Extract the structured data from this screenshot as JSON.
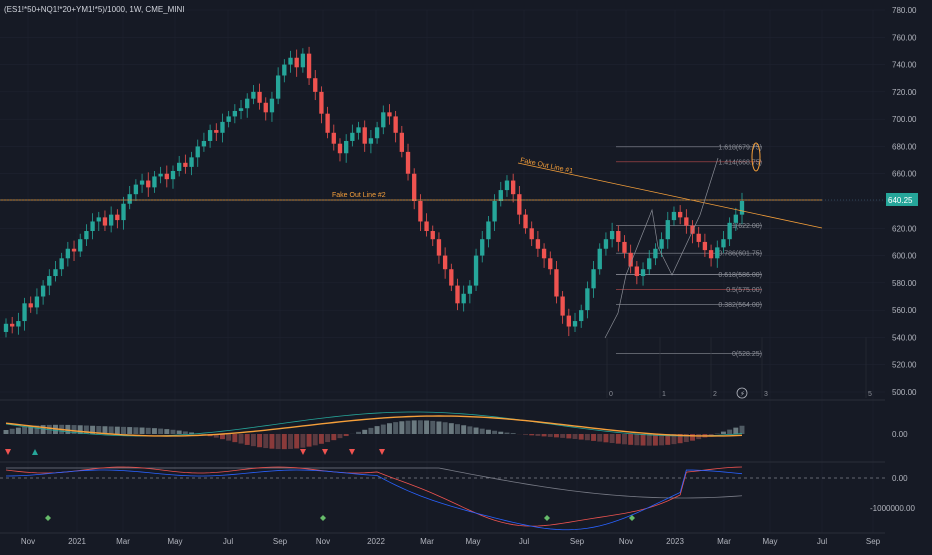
{
  "chart_title": "(ES1!*50+NQ1!*20+YM1!*5)/1000, 1W, CME_MINI",
  "price_badge": "640.25",
  "colors": {
    "up": "#26a69a",
    "down": "#ef5350",
    "orange": "#f59f3a",
    "bg": "#161a25"
  },
  "chart_data": {
    "type": "candlestick",
    "x_ticks": [
      "Nov",
      "2021",
      "Mar",
      "May",
      "Jul",
      "Sep",
      "Nov",
      "2022",
      "Mar",
      "May",
      "Jul",
      "Sep",
      "Nov",
      "2023",
      "Mar",
      "May",
      "Jul",
      "Sep"
    ],
    "y_ticks": [
      500,
      520,
      540,
      560,
      580,
      600,
      620,
      640,
      660,
      680,
      700,
      720,
      740,
      760,
      780
    ],
    "ylim": [
      492,
      788
    ],
    "series": [
      {
        "values": [
          550,
          548,
          552,
          565,
          562,
          570,
          578,
          585,
          590,
          598,
          605,
          603,
          612,
          618,
          625,
          628,
          622,
          630,
          626,
          638,
          645,
          652,
          655,
          650,
          658,
          660,
          656,
          662,
          668,
          665,
          672,
          680,
          684,
          692,
          690,
          698,
          702,
          706,
          708,
          715,
          720,
          712,
          705,
          715,
          732,
          740,
          745,
          738,
          748,
          730,
          720,
          704,
          690,
          682,
          675,
          684,
          690,
          694,
          682,
          686,
          694,
          705,
          702,
          690,
          676,
          660,
          640,
          625,
          618,
          612,
          600,
          590,
          578,
          565,
          572,
          578,
          600,
          612,
          625,
          640,
          648,
          655,
          645,
          630,
          620,
          612,
          605,
          598,
          590,
          570,
          556,
          548,
          552,
          560,
          576,
          590,
          605,
          612,
          618,
          610,
          602,
          592,
          585,
          590,
          598,
          605,
          612,
          626,
          632,
          628,
          622,
          616,
          610,
          604,
          598,
          606,
          612,
          624,
          630,
          640
        ]
      }
    ],
    "annotations": [
      "Fake Out Line #1",
      "Fake Out Line #2"
    ],
    "fib_levels": [
      {
        "ratio": "1.618",
        "price": 679.75,
        "label": "1.618(679.75)"
      },
      {
        "ratio": "1.414",
        "price": 668.75,
        "label": "1.414(668.75)"
      },
      {
        "ratio": "1",
        "price": 622.0,
        "label": "1(622.00)"
      },
      {
        "ratio": "0.786",
        "price": 601.75,
        "label": "0.786(601.75)"
      },
      {
        "ratio": "0.618",
        "price": 586.0,
        "label": "0.618(586.00)"
      },
      {
        "ratio": "0.5",
        "price": 575.0,
        "label": "0.5(575.00)"
      },
      {
        "ratio": "0.382",
        "price": 564.0,
        "label": "0.382(564.00)"
      },
      {
        "ratio": "0",
        "price": 528.25,
        "label": "0(528.25)"
      }
    ],
    "fib_time_labels": [
      "0",
      "1",
      "2",
      "3",
      "5"
    ],
    "macd_ticks": [
      "0.00"
    ],
    "volume_ticks": [
      "0.00",
      "-1000000.00"
    ]
  }
}
